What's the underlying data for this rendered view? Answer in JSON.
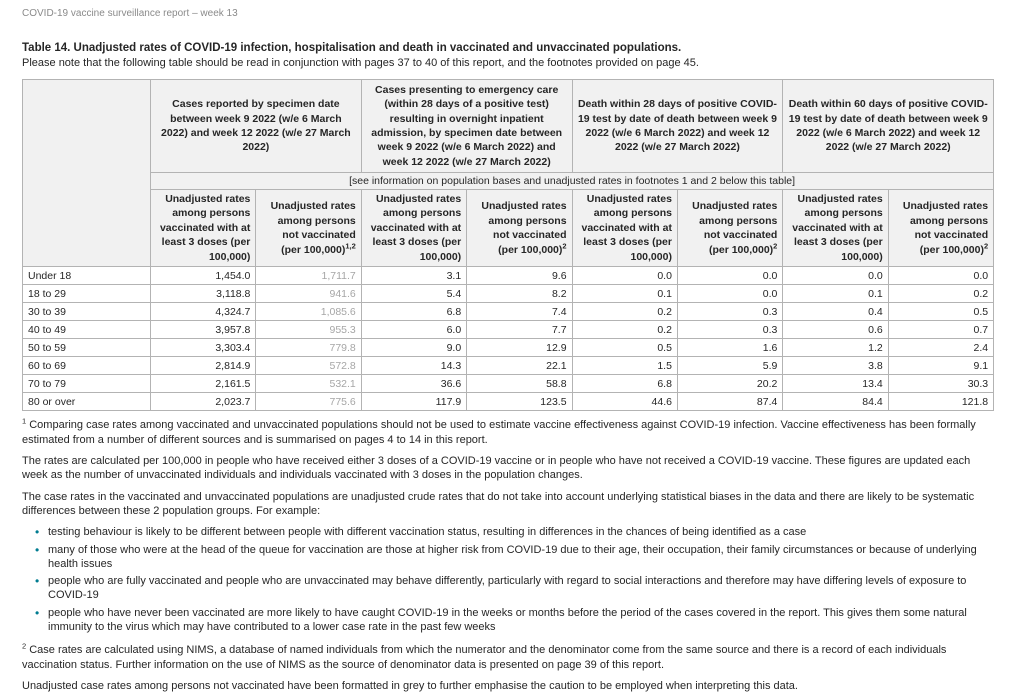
{
  "colors": {
    "header-bg": "#f1f1f1",
    "border": "#b3b3b3",
    "grey-rate": "#a6a6a6",
    "bullet": "#007c91",
    "muted-header": "#8a8a8a"
  },
  "page": {
    "header": "COVID-19 vaccine surveillance report – week 13",
    "title": "Table 14. Unadjusted rates of COVID-19 infection, hospitalisation and death in vaccinated and unvaccinated populations.",
    "subtitle": "Please note that the following table should be read in conjunction with pages 37 to 40 of this report, and the footnotes provided on page 45."
  },
  "table": {
    "group_headers": [
      "Cases reported by specimen date between week 9 2022 (w/e 6 March 2022) and week 12 2022 (w/e 27 March 2022)",
      "Cases presenting to emergency care (within 28 days of a positive test) resulting in overnight inpatient admission, by specimen date between week 9 2022 (w/e 6 March 2022) and week 12 2022 (w/e 27 March 2022)",
      "Death within 28 days of positive COVID-19 test by date of death between week 9 2022 (w/e 6 March 2022) and week 12 2022 (w/e 27 March 2022)",
      "Death within 60 days of positive COVID-19 test by date of death between week 9 2022 (w/e 6 March 2022) and week 12 2022 (w/e 27 March 2022)"
    ],
    "note_row": "[see information on population bases and unadjusted rates in footnotes 1 and 2 below this table]",
    "sub_headers": [
      {
        "label": "Unadjusted rates among persons vaccinated with at least 3 doses (per 100,000)",
        "sup": ""
      },
      {
        "label": "Unadjusted rates among persons not vaccinated (per 100,000)",
        "sup": "1,2"
      },
      {
        "label": "Unadjusted rates among persons vaccinated with at least 3 doses (per 100,000)",
        "sup": ""
      },
      {
        "label": "Unadjusted rates among persons not vaccinated (per 100,000)",
        "sup": "2"
      },
      {
        "label": "Unadjusted rates among persons vaccinated with at least 3 doses (per 100,000)",
        "sup": ""
      },
      {
        "label": "Unadjusted rates among persons not vaccinated (per 100,000)",
        "sup": "2"
      },
      {
        "label": "Unadjusted rates among persons vaccinated with at least 3 doses (per 100,000)",
        "sup": ""
      },
      {
        "label": "Unadjusted rates among persons not vaccinated (per 100,000)",
        "sup": "2"
      }
    ],
    "grey_value_columns": [
      1
    ],
    "rows": [
      {
        "label": "Under 18",
        "values": [
          "1,454.0",
          "1,711.7",
          "3.1",
          "9.6",
          "0.0",
          "0.0",
          "0.0",
          "0.0"
        ]
      },
      {
        "label": "18 to 29",
        "values": [
          "3,118.8",
          "941.6",
          "5.4",
          "8.2",
          "0.1",
          "0.0",
          "0.1",
          "0.2"
        ]
      },
      {
        "label": "30 to 39",
        "values": [
          "4,324.7",
          "1,085.6",
          "6.8",
          "7.4",
          "0.2",
          "0.3",
          "0.4",
          "0.5"
        ]
      },
      {
        "label": "40 to 49",
        "values": [
          "3,957.8",
          "955.3",
          "6.0",
          "7.7",
          "0.2",
          "0.3",
          "0.6",
          "0.7"
        ]
      },
      {
        "label": "50 to 59",
        "values": [
          "3,303.4",
          "779.8",
          "9.0",
          "12.9",
          "0.5",
          "1.6",
          "1.2",
          "2.4"
        ]
      },
      {
        "label": "60 to 69",
        "values": [
          "2,814.9",
          "572.8",
          "14.3",
          "22.1",
          "1.5",
          "5.9",
          "3.8",
          "9.1"
        ]
      },
      {
        "label": "70 to 79",
        "values": [
          "2,161.5",
          "532.1",
          "36.6",
          "58.8",
          "6.8",
          "20.2",
          "13.4",
          "30.3"
        ]
      },
      {
        "label": "80 or over",
        "values": [
          "2,023.7",
          "775.6",
          "117.9",
          "123.5",
          "44.6",
          "87.4",
          "84.4",
          "121.8"
        ]
      }
    ]
  },
  "footnotes": {
    "fn1_sup": "1",
    "fn1_text": " Comparing case rates among vaccinated and unvaccinated populations should not be used to estimate vaccine effectiveness against COVID-19 infection. Vaccine effectiveness has been formally estimated from a number of different sources and is summarised on pages 4 to 14 in this report.",
    "para_rates": "The rates are calculated per 100,000 in people who have received either 3 doses of a COVID-19 vaccine or in people who have not received a COVID-19 vaccine. These figures are updated each week as the number of unvaccinated individuals and individuals vaccinated with 3 doses in the population changes.",
    "para_crude": "The case rates in the vaccinated and unvaccinated populations are unadjusted crude rates that do not take into account underlying statistical biases in the data and there are likely to be systematic differences between these 2 population groups. For example:",
    "bullets": [
      "testing behaviour is likely to be different between people with different vaccination status, resulting in differences in the chances of being identified as a case",
      "many of those who were at the head of the queue for vaccination are those at higher risk from COVID-19 due to their age, their occupation, their family circumstances or because of underlying health issues",
      "people who are fully vaccinated and people who are unvaccinated may behave differently, particularly with regard to social interactions and therefore may have differing levels of exposure to COVID-19",
      "people who have never been vaccinated are more likely to have caught COVID-19 in the weeks or months before the period of the cases covered in the report. This gives them some natural immunity to the virus which may have contributed to a lower case rate in the past few weeks"
    ],
    "fn2_sup": "2",
    "fn2_text": " Case rates are calculated using NIMS, a database of named individuals from which the numerator and the denominator come from the same source and there is a record of each individuals vaccination status. Further information on the use of NIMS as the source of denominator data is presented on page 39 of this report.",
    "para_grey": "Unadjusted case rates among persons not vaccinated have been formatted in grey to further emphasise the caution to be employed when interpreting this data."
  }
}
